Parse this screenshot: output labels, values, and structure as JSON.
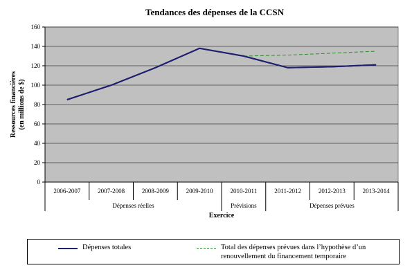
{
  "chart_data": {
    "type": "line",
    "title": "Tendances des dépenses de la CCSN",
    "ylabel": "Ressources financières (en millions de $)",
    "xlabel": "Exercice",
    "ylim": [
      0,
      160
    ],
    "yticks": [
      0,
      20,
      40,
      60,
      80,
      100,
      120,
      140,
      160
    ],
    "categories": [
      "2006-2007",
      "2007-2008",
      "2008-2009",
      "2009-2010",
      "2010-2011",
      "2011-2012",
      "2012-2013",
      "2013-2014"
    ],
    "groups": [
      {
        "label": "Dépenses réelles",
        "span": [
          0,
          3
        ]
      },
      {
        "label": "Prévisions",
        "span": [
          4,
          4
        ]
      },
      {
        "label": "Dépenses prévues",
        "span": [
          5,
          7
        ]
      }
    ],
    "series": [
      {
        "name": "Dépenses totales",
        "color": "#1f1f6f",
        "style": "solid",
        "values": [
          85,
          100,
          118,
          138,
          130,
          118,
          119,
          121
        ]
      },
      {
        "name": "Total des dépenses prévues dans l’hypothèse d’un renouvellement du financement temporaire",
        "color": "#2e8b2e",
        "style": "dashed",
        "values": [
          null,
          null,
          null,
          null,
          130,
          131,
          133,
          135
        ]
      }
    ],
    "plot_background": "#c0c0c0",
    "grid": true,
    "legend_position": "bottom"
  }
}
